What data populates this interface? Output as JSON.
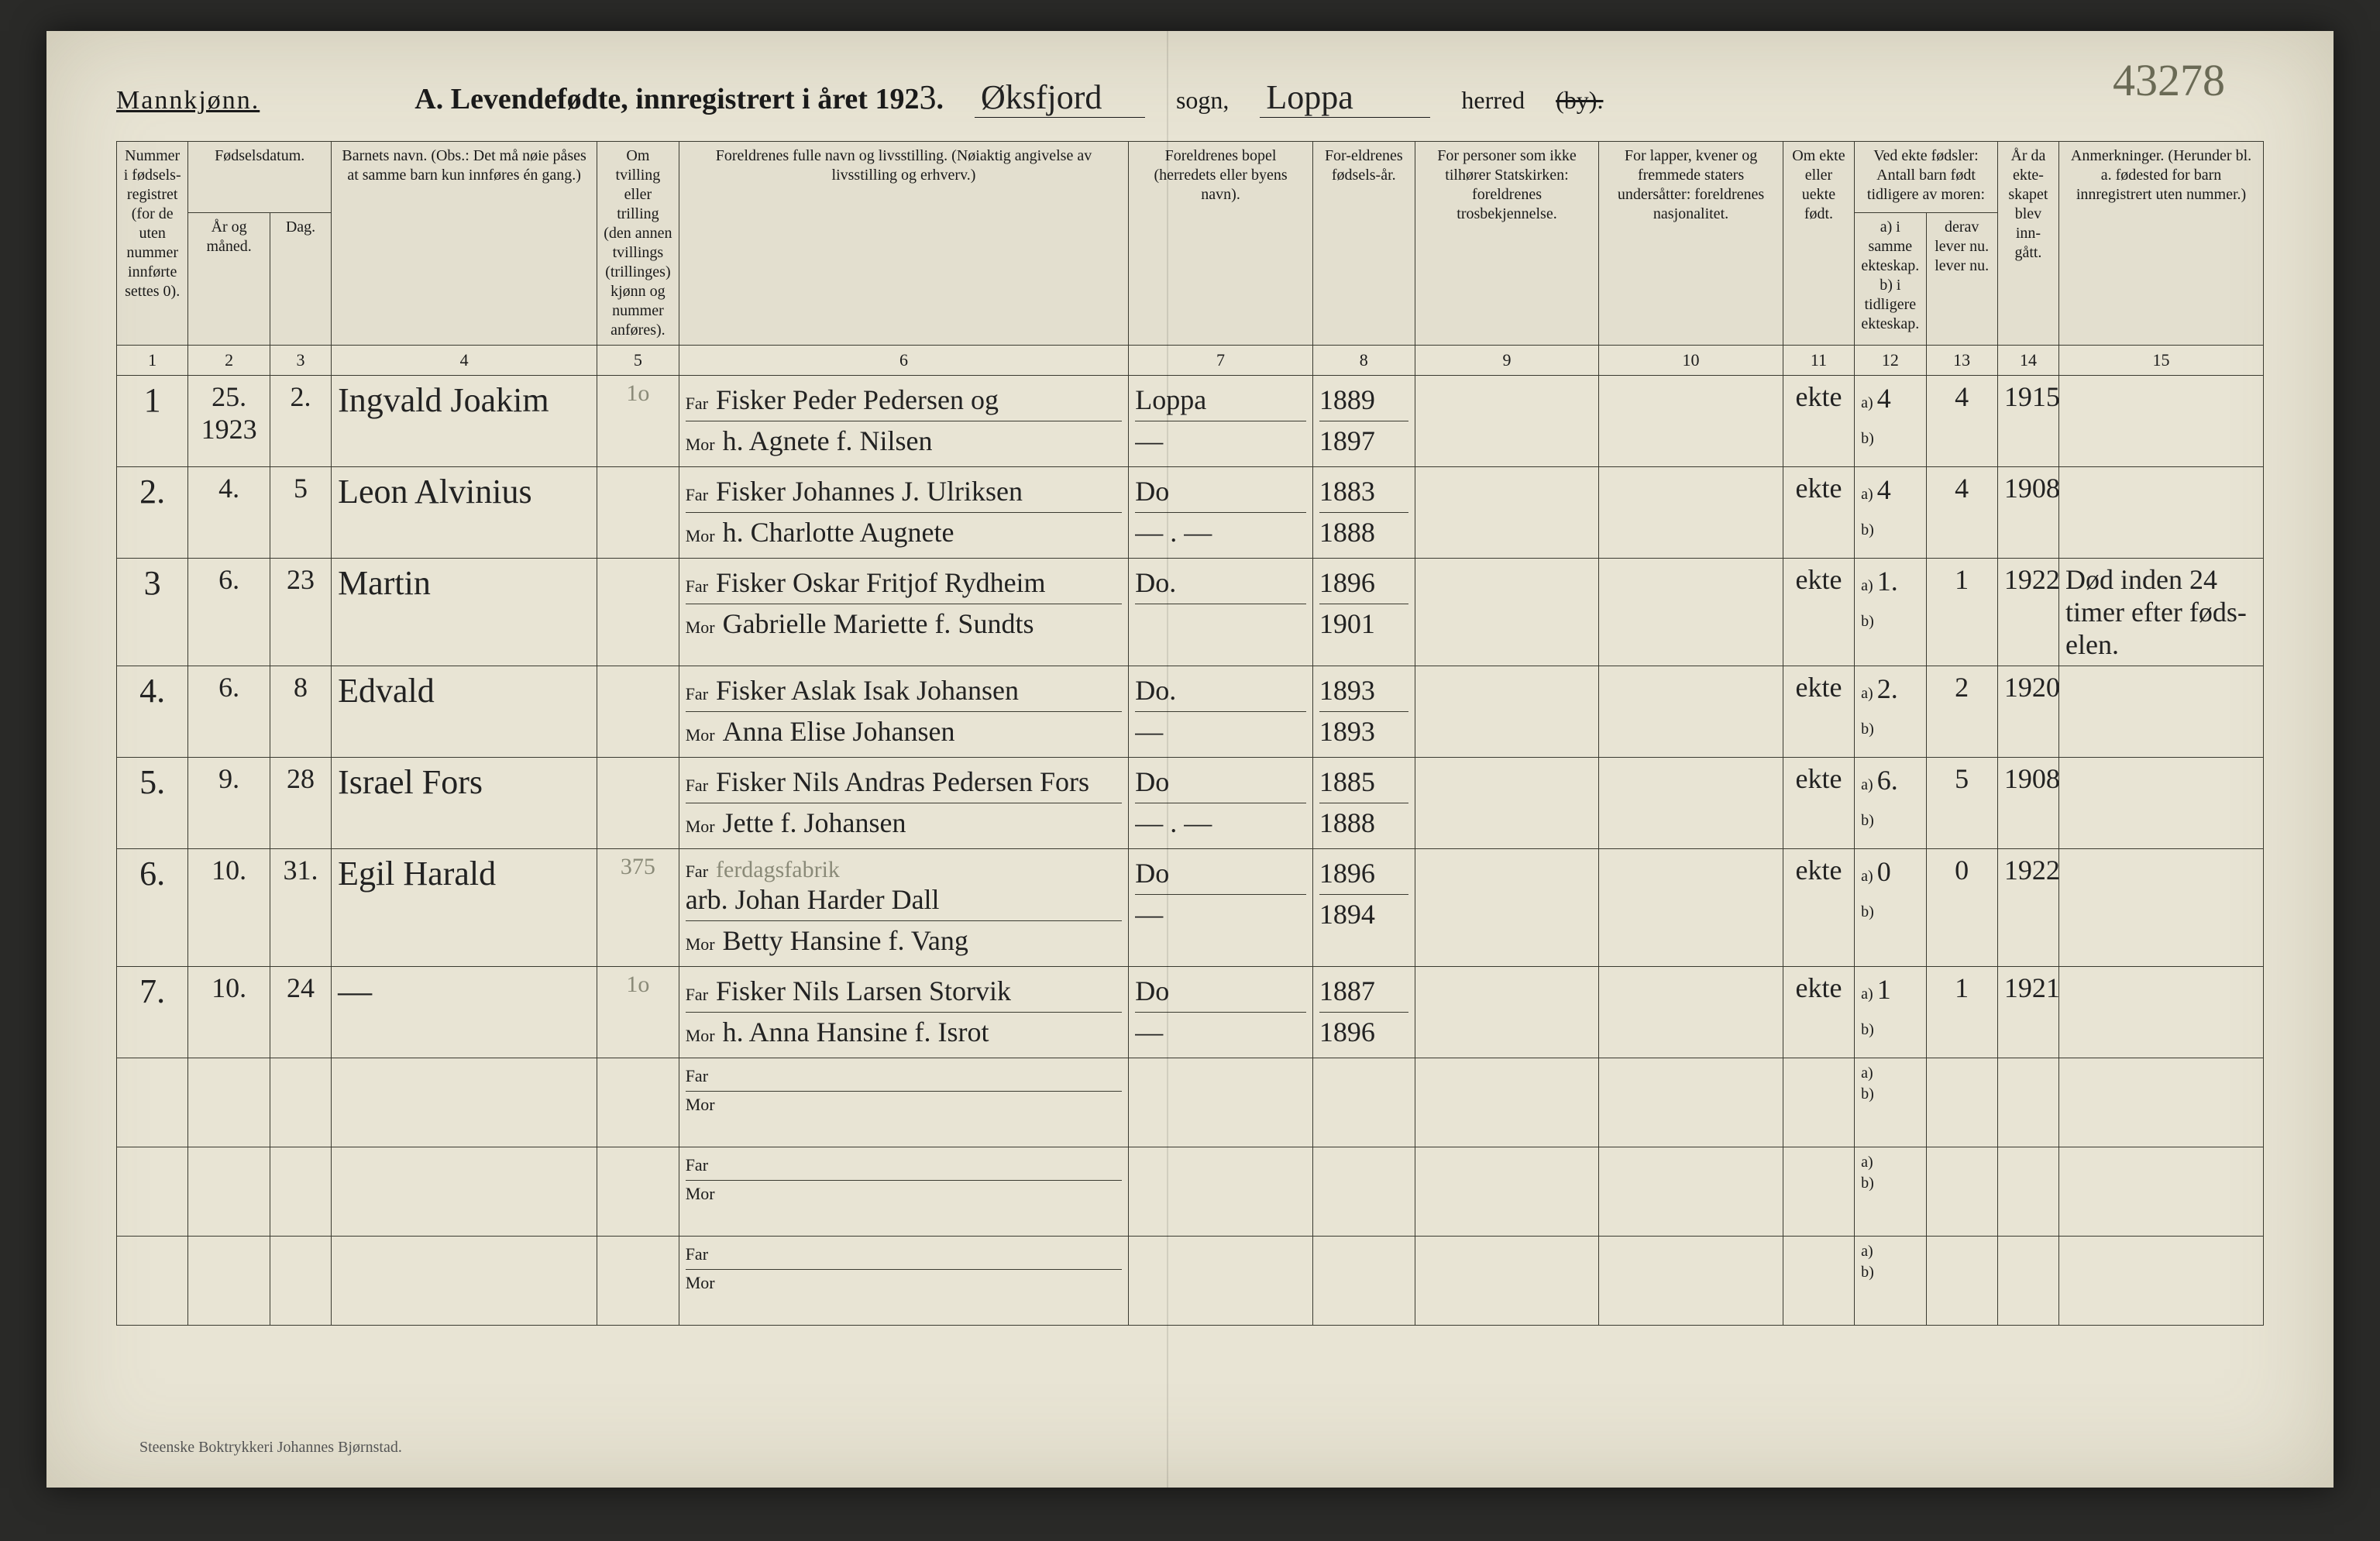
{
  "corner_mark": "43278",
  "header": {
    "gender": "Mannkjønn.",
    "title_prefix": "A.  Levendefødte, innregistrert i året 192",
    "year_suffix": "3",
    "sogn_value": "Øksfjord",
    "sogn_label": "sogn,",
    "herred_value": "Loppa",
    "herred_label": "herred",
    "by_label": "(by)."
  },
  "columns": {
    "c1": "Nummer i fødsels-registret (for de uten nummer innførte settes 0).",
    "c2_group": "Fødselsdatum.",
    "c2a": "År og måned.",
    "c2b": "Dag.",
    "c4": "Barnets navn.\n(Obs.: Det må nøie påses at samme barn kun innføres én gang.)",
    "c5": "Om tvilling eller trilling (den annen tvillings (trillinges) kjønn og nummer anføres).",
    "c6": "Foreldrenes fulle navn og livsstilling.\n(Nøiaktig angivelse av livsstilling og erhverv.)",
    "c7": "Foreldrenes bopel (herredets eller byens navn).",
    "c8": "For-eldrenes fødsels-år.",
    "c9": "For personer som ikke tilhører Statskirken: foreldrenes trosbekjennelse.",
    "c10": "For lapper, kvener og fremmede staters undersåtter: foreldrenes nasjonalitet.",
    "c11": "Om ekte eller uekte født.",
    "c12_group": "Ved ekte fødsler: Antall barn født tidligere av moren:",
    "c12a": "a) i samme ekteskap.\nb) i tidligere ekteskap.",
    "c12b": "derav lever nu.\nlever nu.",
    "c14": "År da ekte-skapet blev inn-gått.",
    "c15": "Anmerkninger.\n(Herunder bl. a. fødested for barn innregistrert uten nummer.)"
  },
  "colnums": [
    "1",
    "2",
    "3",
    "4",
    "5",
    "6",
    "7",
    "8",
    "9",
    "10",
    "11",
    "12",
    "13",
    "14",
    "15"
  ],
  "rows": [
    {
      "n": "1",
      "ym": "25.\n1923",
      "day": "2.",
      "child": "Ingvald Joakim",
      "twin": "1o",
      "far": "Fisker Peder Pedersen og",
      "mor": "h. Agnete f. Nilsen",
      "bopel_far": "Loppa",
      "bopel_mor": "—",
      "yrs_far": "1889",
      "yrs_mor": "1897",
      "c9": "",
      "c10": "",
      "ekte": "ekte",
      "a": "4",
      "b": "",
      "lever": "4",
      "married": "1915",
      "anm": ""
    },
    {
      "n": "2.",
      "ym": "4.",
      "day": "5",
      "child": "Leon Alvinius",
      "twin": "",
      "far": "Fisker Johannes J. Ulriksen",
      "mor": "h. Charlotte Augnete",
      "bopel_far": "Do",
      "bopel_mor": "— . —",
      "yrs_far": "1883",
      "yrs_mor": "1888",
      "c9": "",
      "c10": "",
      "ekte": "ekte",
      "a": "4",
      "b": "",
      "lever": "4",
      "married": "1908",
      "anm": ""
    },
    {
      "n": "3",
      "ym": "6.",
      "day": "23",
      "child": "Martin",
      "twin": "",
      "far": "Fisker Oskar Fritjof Rydheim",
      "mor": "Gabrielle Mariette f. Sundts",
      "bopel_far": "Do.",
      "bopel_mor": "",
      "yrs_far": "1896",
      "yrs_mor": "1901",
      "c9": "",
      "c10": "",
      "ekte": "ekte",
      "a": "1.",
      "b": "",
      "lever": "1",
      "married": "1922",
      "anm": "Død inden 24 timer efter føds-elen."
    },
    {
      "n": "4.",
      "ym": "6.",
      "day": "8",
      "child": "Edvald",
      "twin": "",
      "far": "Fisker Aslak Isak Johansen",
      "mor": "Anna Elise Johansen",
      "bopel_far": "Do.",
      "bopel_mor": "—",
      "yrs_far": "1893",
      "yrs_mor": "1893",
      "c9": "",
      "c10": "",
      "ekte": "ekte",
      "a": "2.",
      "b": "",
      "lever": "2",
      "married": "1920",
      "anm": ""
    },
    {
      "n": "5.",
      "ym": "9.",
      "day": "28",
      "child": "Israel Fors",
      "twin": "",
      "far": "Fisker Nils Andras Pedersen Fors",
      "mor": "Jette f. Johansen",
      "bopel_far": "Do",
      "bopel_mor": "— . —",
      "yrs_far": "1885",
      "yrs_mor": "1888",
      "c9": "",
      "c10": "",
      "ekte": "ekte",
      "a": "6.",
      "b": "",
      "lever": "5",
      "married": "1908",
      "anm": ""
    },
    {
      "n": "6.",
      "ym": "10.",
      "day": "31.",
      "child": "Egil Harald",
      "twin": "375",
      "far_sup": "ferdagsfabrik",
      "far": "arb. Johan Harder Dall",
      "mor": "Betty Hansine f. Vang",
      "bopel_far": "Do",
      "bopel_mor": "—",
      "yrs_far": "1896",
      "yrs_mor": "1894",
      "c9": "",
      "c10": "",
      "ekte": "ekte",
      "a": "0",
      "b": "",
      "lever": "0",
      "married": "1922",
      "anm": ""
    },
    {
      "n": "7.",
      "ym": "10.",
      "day": "24",
      "child": "—",
      "twin": "1o",
      "far": "Fisker Nils Larsen Storvik",
      "mor": "h. Anna Hansine f. Isrot",
      "bopel_far": "Do",
      "bopel_mor": "—",
      "yrs_far": "1887",
      "yrs_mor": "1896",
      "c9": "",
      "c10": "",
      "ekte": "ekte",
      "a": "1",
      "b": "",
      "lever": "1",
      "married": "1921",
      "anm": ""
    }
  ],
  "blank_rows": 3,
  "labels": {
    "far": "Far",
    "mor": "Mor",
    "a": "a)",
    "b": "b)"
  },
  "footer": "Steenske Boktrykkeri Johannes Bjørnstad.",
  "style": {
    "page_bg": "#e8e4d4",
    "ink": "#1a1a1a",
    "pencil": "#8a8a78",
    "border": "#3a3a30",
    "hand_font": "Brush Script MT",
    "print_font": "Georgia",
    "header_fontsize_pt": 28,
    "body_fontsize_pt": 16,
    "col_widths_pct": [
      3.5,
      4,
      3,
      13,
      4,
      22,
      9,
      5,
      9,
      9,
      3.5,
      3.5,
      3.5,
      3,
      10
    ]
  }
}
